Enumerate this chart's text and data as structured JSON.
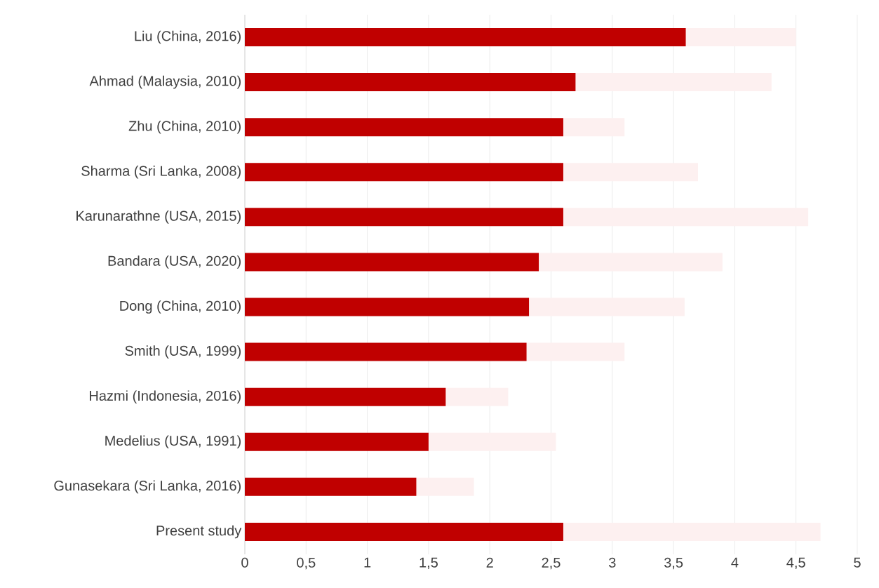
{
  "chart_data": {
    "type": "bar",
    "orientation": "horizontal",
    "stacked": true,
    "categories": [
      "Liu (China, 2016)",
      "Ahmad (Malaysia, 2010)",
      "Zhu (China, 2010)",
      "Sharma (Sri Lanka, 2008)",
      "Karunarathne (USA, 2015)",
      "Bandara (USA, 2020)",
      "Dong (China, 2010)",
      "Smith (USA, 1999)",
      "Hazmi (Indonesia, 2016)",
      "Medelius (USA, 1991)",
      "Gunasekara (Sri Lanka, 2016)",
      "Present study"
    ],
    "series": [
      {
        "color": "#c00000",
        "values": [
          3.6,
          2.7,
          2.6,
          2.6,
          2.6,
          2.4,
          2.32,
          2.3,
          1.64,
          1.5,
          1.4,
          2.6
        ]
      },
      {
        "color": "#fdf0f0",
        "values": [
          0.9,
          1.6,
          0.5,
          1.1,
          2.0,
          1.5,
          1.27,
          0.8,
          0.51,
          1.04,
          0.47,
          2.1
        ]
      }
    ],
    "xlim": [
      0,
      5
    ],
    "xticks": [
      0,
      {
        "value": 0.5,
        "label": "0,5"
      },
      1,
      {
        "value": 1.5,
        "label": "1,5"
      },
      2,
      {
        "value": 2.5,
        "label": "2,5"
      },
      3,
      {
        "value": 3.5,
        "label": "3,5"
      },
      4,
      {
        "value": 4.5,
        "label": "4,5"
      },
      5
    ],
    "grid": "x"
  }
}
